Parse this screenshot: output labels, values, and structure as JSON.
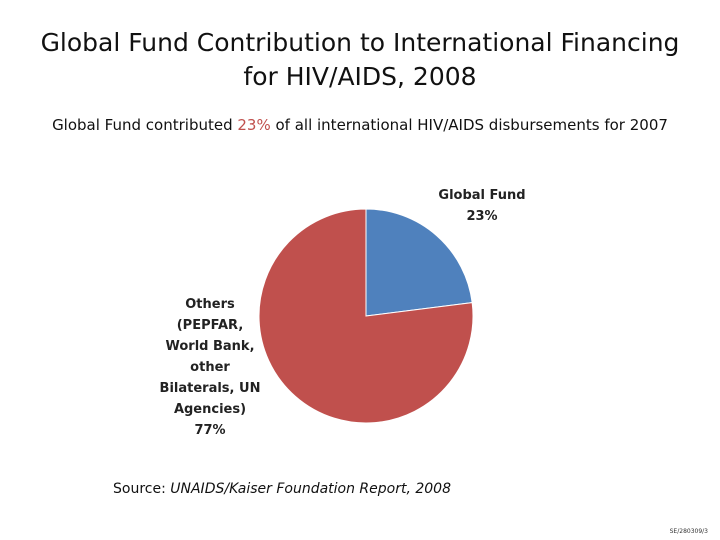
{
  "title": "Global Fund Contribution to International Financing for HIV/AIDS, 2008",
  "subtitle": {
    "prefix": "Global Fund contributed ",
    "highlight": "23%",
    "suffix": " of all international HIV/AIDS disbursements for 2007",
    "highlight_color": "#c0504d"
  },
  "chart_data": {
    "type": "pie",
    "title": "Global Fund Contribution to International Financing for HIV/AIDS, 2008",
    "slices": [
      {
        "label": "Global Fund",
        "value": 23,
        "value_label": "23%",
        "color": "#4f81bd"
      },
      {
        "label": "Others (PEPFAR, World Bank, other Bilaterals, UN Agencies)",
        "value": 77,
        "value_label": "77%",
        "color": "#c0504d"
      }
    ],
    "labels": {
      "global_fund": [
        "Global Fund",
        "23%"
      ],
      "others": [
        "Others",
        "(PEPFAR,",
        "World Bank,",
        "other",
        "Bilaterals, UN",
        "Agencies)",
        "77%"
      ]
    }
  },
  "source": {
    "label": "Source:",
    "text": " UNAIDS/Kaiser Foundation Report, 2008"
  },
  "footer_code": "SE/280309/3"
}
